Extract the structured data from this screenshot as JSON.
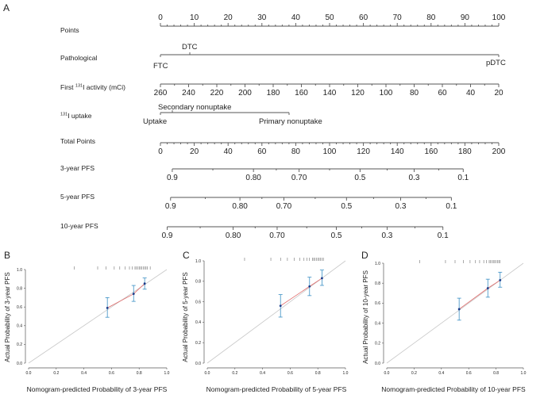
{
  "nomogram": {
    "panel_label": "A",
    "rows": {
      "points": {
        "label": "Points",
        "ticks": [
          "0",
          "10",
          "20",
          "30",
          "40",
          "50",
          "60",
          "70",
          "80",
          "90",
          "100"
        ]
      },
      "path": {
        "label": "Pathological",
        "ftc": "FTC",
        "dtc": "DTC",
        "pdtc": "pDTC"
      },
      "act": {
        "label_pre": "First ",
        "label_sup": "131",
        "label_post": "I activity (mCi)",
        "ticks": [
          "260",
          "240",
          "220",
          "200",
          "180",
          "160",
          "140",
          "120",
          "100",
          "80",
          "60",
          "40",
          "20"
        ]
      },
      "upt": {
        "label_sup": "131",
        "label_post": "I uptake",
        "uptake": "Uptake",
        "secondary": "Secondary nonuptake",
        "primary": "Primary nonuptake"
      },
      "total": {
        "label": "Total Points",
        "ticks": [
          "0",
          "20",
          "40",
          "60",
          "80",
          "100",
          "120",
          "140",
          "160",
          "180",
          "200"
        ]
      },
      "p3": {
        "label": "3-year PFS",
        "ticks": [
          "0.9",
          "0.80",
          "0.70",
          "0.5",
          "0.3",
          "0.1"
        ]
      },
      "p5": {
        "label": "5-year PFS",
        "ticks": [
          "0.9",
          "0.80",
          "0.70",
          "0.5",
          "0.3",
          "0.1"
        ]
      },
      "p10": {
        "label": "10-year PFS",
        "ticks": [
          "0.9",
          "0.80",
          "0.70",
          "0.5",
          "0.3",
          "0.1"
        ]
      }
    }
  },
  "calibration": {
    "axis_ticks": [
      "0.0",
      "0.2",
      "0.4",
      "0.6",
      "0.8",
      "1.0"
    ],
    "panels": [
      {
        "id": "B",
        "label": "B",
        "ylabel": "Actual Probability of 3-year PFS",
        "xlabel": "Nomogram-predicted Probability of 3-year PFS"
      },
      {
        "id": "C",
        "label": "C",
        "ylabel": "Actual Probability of 5-year PFS",
        "xlabel": "Nomogram-predicted Probability of 5-year PFS"
      },
      {
        "id": "D",
        "label": "D",
        "ylabel": "Actual Probability of 10-year PFS",
        "xlabel": "Nomogram-predicted Probability of 10-year PFS"
      }
    ]
  },
  "colors": {
    "ideal": "#c8c8c8",
    "fit": "#e06a6a",
    "errbar": "#3a8fc4",
    "point": "#1a3a8a",
    "axis": "#555555"
  },
  "chart_data": [
    {
      "type": "nomogram",
      "title": "A",
      "scales": [
        {
          "name": "Points",
          "range": [
            0,
            100
          ],
          "tick_values": [
            0,
            10,
            20,
            30,
            40,
            50,
            60,
            70,
            80,
            90,
            100
          ]
        },
        {
          "name": "Pathological",
          "levels": [
            {
              "level": "FTC",
              "points": 0
            },
            {
              "level": "DTC",
              "points": 9
            },
            {
              "level": "pDTC",
              "points": 100
            }
          ]
        },
        {
          "name": "First 131I activity (mCi)",
          "from": 260,
          "to": 20,
          "points_range": [
            0,
            100
          ]
        },
        {
          "name": "131I uptake",
          "levels": [
            {
              "level": "Uptake",
              "points": 0
            },
            {
              "level": "Secondary nonuptake",
              "points": 4
            },
            {
              "level": "Primary nonuptake",
              "points": 38
            }
          ]
        },
        {
          "name": "Total Points",
          "range": [
            0,
            200
          ],
          "tick_values": [
            0,
            20,
            40,
            60,
            80,
            100,
            120,
            140,
            160,
            180,
            200
          ]
        },
        {
          "name": "3-year PFS",
          "tick_values": [
            0.9,
            0.8,
            0.7,
            0.5,
            0.3,
            0.1
          ],
          "total_points_at_ticks": [
            7,
            55,
            82,
            118,
            150,
            179
          ]
        },
        {
          "name": "5-year PFS",
          "tick_values": [
            0.9,
            0.8,
            0.7,
            0.5,
            0.3,
            0.1
          ],
          "total_points_at_ticks": [
            6,
            47,
            73,
            110,
            142,
            172
          ]
        },
        {
          "name": "10-year PFS",
          "tick_values": [
            0.9,
            0.8,
            0.7,
            0.5,
            0.3,
            0.1
          ],
          "total_points_at_ticks": [
            4,
            43,
            69,
            104,
            134,
            167
          ]
        }
      ]
    },
    {
      "type": "scatter",
      "title": "B",
      "xlabel": "Nomogram-predicted Probability of 3-year PFS",
      "ylabel": "Actual Probability of 3-year PFS",
      "xlim": [
        0,
        1
      ],
      "ylim": [
        0,
        1
      ],
      "points": [
        {
          "x": 0.57,
          "y": 0.59,
          "lo": 0.49,
          "hi": 0.7
        },
        {
          "x": 0.76,
          "y": 0.74,
          "lo": 0.66,
          "hi": 0.83
        },
        {
          "x": 0.84,
          "y": 0.85,
          "lo": 0.79,
          "hi": 0.91
        }
      ],
      "rug": [
        0.33,
        0.5,
        0.56,
        0.62,
        0.66,
        0.7,
        0.73,
        0.75,
        0.77,
        0.78,
        0.79,
        0.8,
        0.81,
        0.82,
        0.83,
        0.84,
        0.85,
        0.86,
        0.88
      ]
    },
    {
      "type": "scatter",
      "title": "C",
      "xlabel": "Nomogram-predicted Probability of 5-year PFS",
      "ylabel": "Actual Probability of 5-year PFS",
      "xlim": [
        0,
        1
      ],
      "ylim": [
        0,
        1
      ],
      "points": [
        {
          "x": 0.53,
          "y": 0.56,
          "lo": 0.45,
          "hi": 0.67
        },
        {
          "x": 0.74,
          "y": 0.75,
          "lo": 0.66,
          "hi": 0.84
        },
        {
          "x": 0.83,
          "y": 0.83,
          "lo": 0.76,
          "hi": 0.91
        }
      ],
      "rug": [
        0.27,
        0.46,
        0.53,
        0.58,
        0.63,
        0.67,
        0.7,
        0.72,
        0.74,
        0.76,
        0.77,
        0.78,
        0.79,
        0.8,
        0.81,
        0.82,
        0.83,
        0.84
      ]
    },
    {
      "type": "scatter",
      "title": "D",
      "xlabel": "Nomogram-predicted Probability of 10-year PFS",
      "ylabel": "Actual Probability of 10-year PFS",
      "xlim": [
        0,
        1
      ],
      "ylim": [
        0,
        1
      ],
      "points": [
        {
          "x": 0.53,
          "y": 0.54,
          "lo": 0.43,
          "hi": 0.65
        },
        {
          "x": 0.74,
          "y": 0.75,
          "lo": 0.66,
          "hi": 0.84
        },
        {
          "x": 0.83,
          "y": 0.83,
          "lo": 0.76,
          "hi": 0.91
        }
      ],
      "rug": [
        0.24,
        0.43,
        0.5,
        0.56,
        0.61,
        0.65,
        0.68,
        0.71,
        0.73,
        0.75,
        0.76,
        0.77,
        0.78,
        0.79,
        0.8,
        0.81,
        0.82,
        0.83
      ]
    }
  ]
}
